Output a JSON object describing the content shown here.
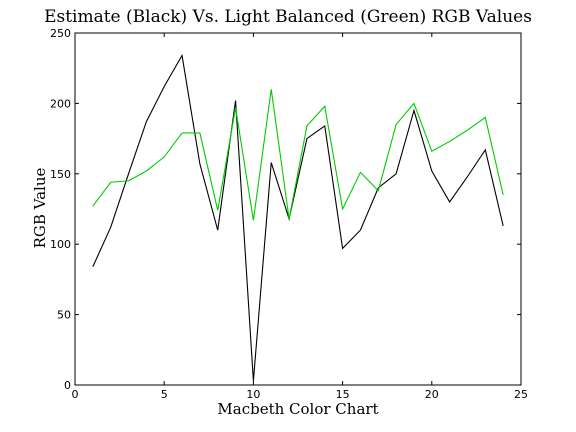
{
  "chart_data": {
    "type": "line",
    "title": "Estimate (Black) Vs. Light Balanced (Green) RGB Values",
    "xlabel": "Macbeth Color Chart",
    "ylabel": "RGB Value",
    "xlim": [
      0,
      25
    ],
    "ylim": [
      0,
      250
    ],
    "xticks": [
      0,
      5,
      10,
      15,
      20,
      25
    ],
    "yticks": [
      0,
      50,
      100,
      150,
      200,
      250
    ],
    "grid": false,
    "legend": "none",
    "x": [
      1,
      2,
      3,
      4,
      5,
      6,
      7,
      8,
      9,
      10,
      11,
      12,
      13,
      14,
      15,
      16,
      17,
      18,
      19,
      20,
      21,
      22,
      23,
      24
    ],
    "series": [
      {
        "color": "#000000",
        "values": [
          84,
          112,
          150,
          187,
          212,
          234,
          157,
          110,
          202,
          3,
          158,
          118,
          175,
          184,
          97,
          110,
          140,
          150,
          195,
          152,
          130,
          148,
          167,
          113
        ]
      },
      {
        "color": "#00cc00",
        "values": [
          127,
          144,
          145,
          152,
          162,
          179,
          179,
          124,
          197,
          117,
          210,
          118,
          184,
          198,
          125,
          151,
          138,
          185,
          200,
          166,
          173,
          181,
          190,
          135
        ]
      }
    ]
  }
}
